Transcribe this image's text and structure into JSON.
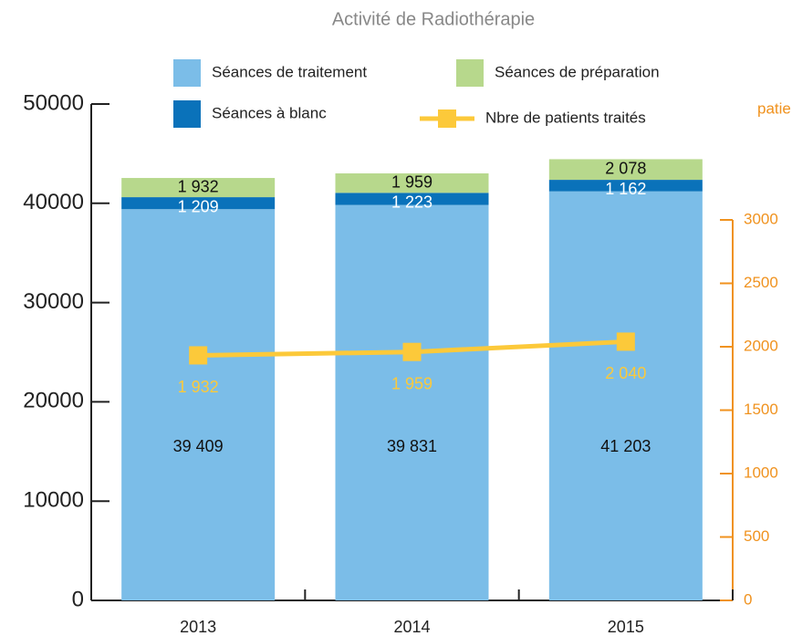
{
  "chart_data": {
    "type": "bar",
    "title": "Activité de Radiothérapie",
    "categories": [
      "2013",
      "2014",
      "2015"
    ],
    "series": [
      {
        "name": "Séances de traitement",
        "color": "#7bbde8",
        "values": [
          39409,
          39831,
          41203
        ],
        "value_labels": [
          "39 409",
          "39 831",
          "41 203"
        ]
      },
      {
        "name": "Séances à blanc",
        "color": "#0a72ba",
        "values": [
          1209,
          1223,
          1162
        ],
        "value_labels": [
          "1 209",
          "1 223",
          "1 162"
        ]
      },
      {
        "name": "Séances de préparation",
        "color": "#b7d88c",
        "values": [
          1932,
          1959,
          2078
        ],
        "value_labels": [
          "1 932",
          "1 959",
          "2 078"
        ]
      },
      {
        "name": "Nbre de patients traités",
        "color": "#fcc93a",
        "axis": "y2",
        "type": "line",
        "values": [
          1932,
          1959,
          2040
        ],
        "value_labels": [
          "1 932",
          "1 959",
          "2 040"
        ]
      }
    ],
    "y2_label": "patients",
    "ylim": [
      0,
      50000
    ],
    "yticks": [
      0,
      10000,
      20000,
      30000,
      40000,
      50000
    ],
    "y2lim": [
      0,
      3000
    ],
    "y2ticks": [
      0,
      500,
      1000,
      1500,
      2000,
      2500,
      3000
    ],
    "y2color": "#f0921e"
  }
}
